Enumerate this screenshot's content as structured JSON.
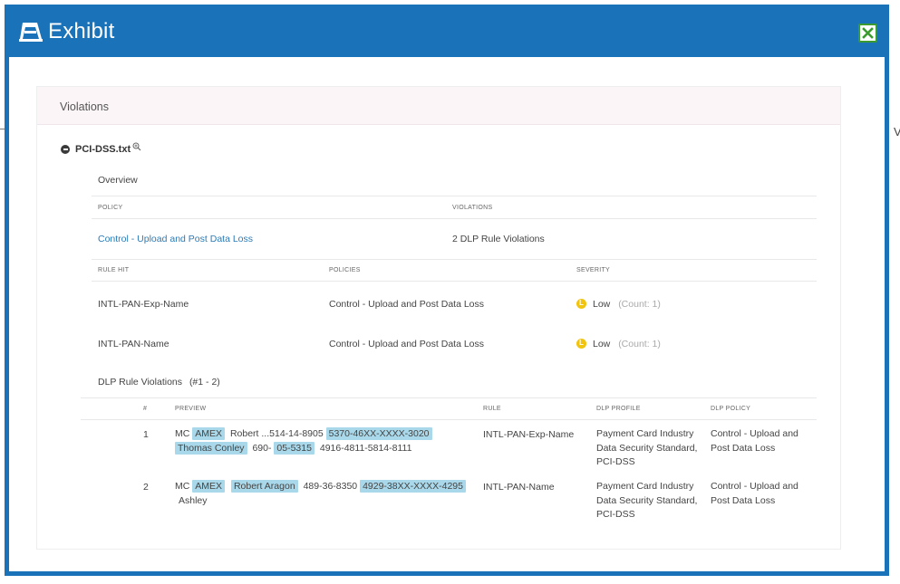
{
  "window": {
    "title": "Exhibit"
  },
  "violations": {
    "header": "Violations",
    "file_name": "PCI-DSS.txt",
    "overview_label": "Overview",
    "policy_table": {
      "columns": [
        "POLICY",
        "VIOLATIONS"
      ],
      "policy": "Control - Upload and Post Data Loss",
      "violations": "2 DLP Rule Violations"
    },
    "rules_table": {
      "columns": [
        "RULE HIT",
        "POLICIES",
        "SEVERITY"
      ],
      "rows": [
        {
          "rule": "INTL-PAN-Exp-Name",
          "policy": "Control - Upload and Post Data Loss",
          "severity": "Low",
          "count": "(Count: 1)"
        },
        {
          "rule": "INTL-PAN-Name",
          "policy": "Control - Upload and Post Data Loss",
          "severity": "Low",
          "count": "(Count: 1)"
        }
      ]
    },
    "dlp_violations_label": "DLP Rule Violations",
    "dlp_violations_range": "(#1 - 2)",
    "dlp_table": {
      "columns": [
        "#",
        "PREVIEW",
        "RULE",
        "DLP PROFILE",
        "DLP POLICY"
      ],
      "rows": [
        {
          "num": "1",
          "preview_line1": [
            "MC",
            "AMEX",
            "Robert ...514-14-8905",
            "5370-46XX-XXXX-3020"
          ],
          "preview_line2": [
            "Thomas Conley",
            "690-",
            "05-5315",
            "4916-4811-5814-8111"
          ],
          "rule": "INTL-PAN-Exp-Name",
          "profile": [
            "Payment Card Industry",
            "Data Security Standard,",
            "PCI-DSS"
          ],
          "policy": [
            "Control - Upload and",
            "Post Data Loss"
          ]
        },
        {
          "num": "2",
          "preview_line1": [
            "MC",
            "AMEX",
            "Robert Aragon",
            "489-36-8350",
            "4929-38XX-XXXX-4295"
          ],
          "preview_line2": [
            "Ashley"
          ],
          "rule": "INTL-PAN-Name",
          "profile": [
            "Payment Card Industry",
            "Data Security Standard,",
            "PCI-DSS"
          ],
          "policy": [
            "Control - Upload and",
            "Post Data Loss"
          ]
        }
      ]
    }
  },
  "stray_text": "V",
  "colors": {
    "frame_blue": "#1a73b8",
    "close_green": "#3b9b2f",
    "highlight": "#a9d8ea",
    "severity_low": "#f1c40f",
    "link": "#2c7bb6"
  }
}
